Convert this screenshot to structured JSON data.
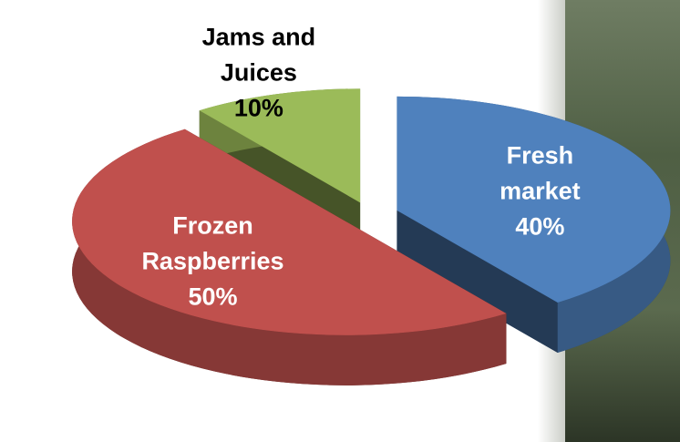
{
  "chart_data": {
    "type": "pie",
    "categories": [
      "Fresh market",
      "Frozen Raspberries",
      "Jams and Juices"
    ],
    "values": [
      40,
      50,
      10
    ],
    "value_labels": [
      "40%",
      "50%",
      "10%"
    ],
    "colors": [
      "#4f81bd",
      "#c0504d",
      "#9bbb59"
    ]
  }
}
